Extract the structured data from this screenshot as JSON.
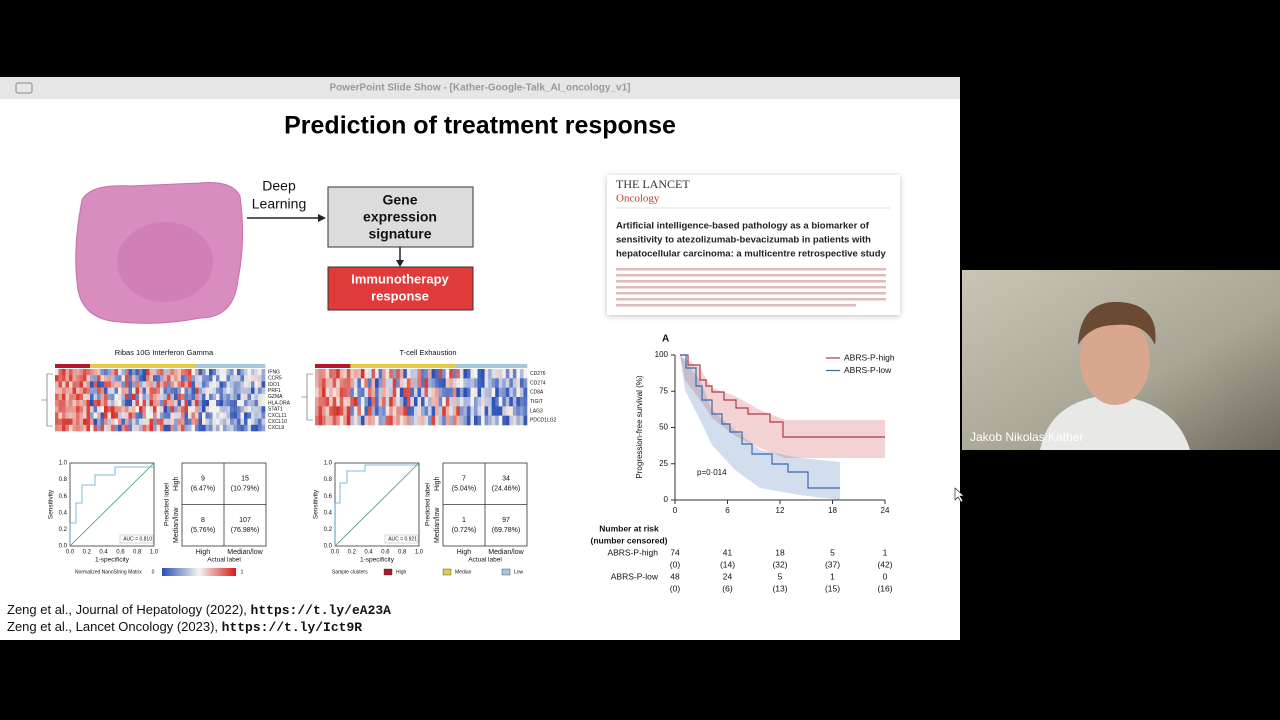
{
  "window": {
    "title": "PowerPoint Slide Show - [Kather-Google-Talk_AI_oncology_v1]"
  },
  "slide": {
    "title": "Prediction of treatment response",
    "pipeline": {
      "step_label": [
        "Deep",
        "Learning"
      ],
      "signature": [
        "Gene",
        "expression",
        "signature"
      ],
      "outcome": [
        "Immunotherapy",
        "response"
      ]
    },
    "panels": [
      {
        "title": "Ribas 10G Interferon Gamma",
        "genes": [
          "IFNG",
          "CCR5",
          "IDO1",
          "PRF1",
          "GZMA",
          "HLA-DRA",
          "STAT1",
          "CXCL11",
          "CXCL10",
          "CXCL9"
        ],
        "roc": {
          "y_label": "Sensitivity",
          "x_label": "1-specificity",
          "ticks": [
            "0.0",
            "0.2",
            "0.4",
            "0.6",
            "0.8",
            "1.0"
          ],
          "auc": "AUC = 0.810"
        },
        "matrix": {
          "y_label": "Predicted label",
          "x_label": "Actual label",
          "classes": [
            "High",
            "Median/low"
          ],
          "cells": [
            [
              [
                "9",
                "(6.47%)"
              ],
              [
                "15",
                "(10.79%)"
              ]
            ],
            [
              [
                "8",
                "(5.76%)"
              ],
              [
                "107",
                "(76.98%)"
              ]
            ]
          ]
        },
        "legend": [
          "Normalized NanoString Matrix",
          "0",
          "1"
        ]
      },
      {
        "title": "T-cell Exhaustion",
        "genes": [
          "CD276",
          "CD274",
          "CD8A",
          "TIGIT",
          "LAG3",
          "PDCD1LG2"
        ],
        "roc": {
          "y_label": "Sensitivity",
          "x_label": "1-specificity",
          "ticks": [
            "0.0",
            "0.2",
            "0.4",
            "0.6",
            "0.8",
            "1.0"
          ],
          "auc": "AUC = 0.921"
        },
        "matrix": {
          "y_label": "Predicted label",
          "x_label": "Actual label",
          "classes": [
            "High",
            "Median/low"
          ],
          "cells": [
            [
              [
                "7",
                "(5.04%)"
              ],
              [
                "34",
                "(24.46%)"
              ]
            ],
            [
              [
                "1",
                "(0.72%)"
              ],
              [
                "97",
                "(69.78%)"
              ]
            ]
          ]
        },
        "legend": [
          "Sample clusters",
          "High",
          "Median",
          "Low"
        ]
      }
    ],
    "paper": {
      "journal": "THE LANCET",
      "section": "Oncology",
      "title": [
        "Artificial intelligence-based pathology as a biomarker of",
        "sensitivity to atezolizumab-bevacizumab in patients with",
        "hepatocellular carcinoma: a multicentre retrospective study"
      ]
    },
    "km": {
      "panel": "A",
      "y_label": "Progression-free survival (%)",
      "yticks": [
        0,
        25,
        50,
        75,
        100
      ],
      "xticks": [
        0,
        6,
        12,
        18,
        24
      ],
      "legend": [
        "ABRS-P-high",
        "ABRS-P-low"
      ],
      "p_value": "p=0·014",
      "risk": {
        "header": [
          "Number at risk",
          "(number censored)"
        ],
        "rows": [
          {
            "name": "ABRS-P-high",
            "at_risk": [
              "74",
              "41",
              "18",
              "5",
              "1"
            ],
            "censored": [
              "(0)",
              "(14)",
              "(32)",
              "(37)",
              "(42)"
            ]
          },
          {
            "name": "ABRS-P-low",
            "at_risk": [
              "48",
              "24",
              "5",
              "1",
              "0"
            ],
            "censored": [
              "(0)",
              "(6)",
              "(13)",
              "(15)",
              "(16)"
            ]
          }
        ]
      }
    },
    "citations": [
      {
        "text": "Zeng et al., Journal of Hepatology (2022), ",
        "link": "https://t.ly/eA23A"
      },
      {
        "text": "Zeng et al., Lancet Oncology (2023), ",
        "link": "https://t.ly/Ict9R"
      }
    ]
  },
  "participant": {
    "name": "Jakob Nikolas Kather"
  }
}
